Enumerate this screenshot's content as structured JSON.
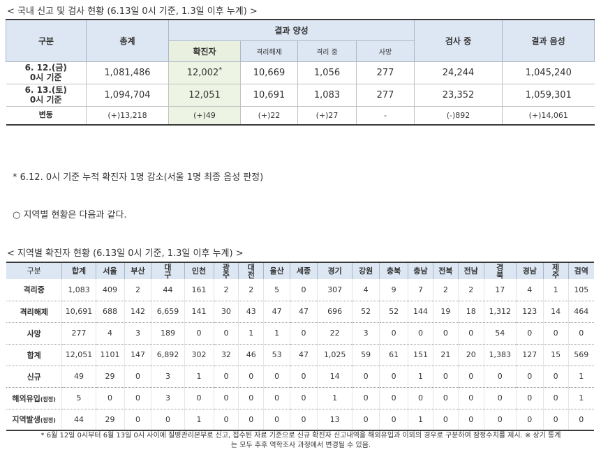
{
  "t1_title": "< 국내 신고 및 검사 현황 (6.13일 0시 기준, 1.3일 이후 누계) >",
  "t1": {
    "h_gubun": "구분",
    "h_total": "총계",
    "h_pos": "결과 양성",
    "h_conf": "확진자",
    "h_rel": "격리해제",
    "h_iso": "격리 중",
    "h_dead": "사망",
    "h_test": "검사 중",
    "h_neg": "결과 음성",
    "rows": [
      {
        "label1": "6. 12.(금)",
        "label2": "0시 기준",
        "total": "1,081,486",
        "conf": "12,002",
        "mark": "*",
        "rel": "10,669",
        "iso": "1,056",
        "dead": "277",
        "test": "24,244",
        "neg": "1,045,240"
      },
      {
        "label1": "6. 13.(토)",
        "label2": "0시 기준",
        "total": "1,094,704",
        "conf": "12,051",
        "mark": "",
        "rel": "10,691",
        "iso": "1,083",
        "dead": "277",
        "test": "23,352",
        "neg": "1,059,301"
      },
      {
        "label1": "변동",
        "label2": "",
        "total": "(+)13,218",
        "conf": "(+)49",
        "mark": "",
        "rel": "(+)22",
        "iso": "(+)27",
        "dead": "-",
        "test": "(-)892",
        "neg": "(+)14,061"
      }
    ]
  },
  "note1": "* 6.12. 0시 기준 누적 확진자 1명 감소(서울 1명 최종 음성 판정)",
  "note2": "○ 지역별 현황은 다음과 같다.",
  "t2_title": "< 지역별 확진자 현황 (6.13일 0시 기준, 1.3일 이후 누계) >",
  "t2": {
    "headers": [
      "구분",
      "합계",
      "서울",
      "부산",
      "대구",
      "인천",
      "광주",
      "대전",
      "울산",
      "세종",
      "경기",
      "강원",
      "충북",
      "충남",
      "전북",
      "전남",
      "경북",
      "경남",
      "제주",
      "검역"
    ],
    "rows": [
      {
        "label": "격리중",
        "sub": "",
        "values": [
          "1,083",
          "409",
          "2",
          "44",
          "161",
          "2",
          "2",
          "5",
          "0",
          "307",
          "4",
          "9",
          "7",
          "2",
          "2",
          "17",
          "4",
          "1",
          "105"
        ]
      },
      {
        "label": "격리해제",
        "sub": "",
        "values": [
          "10,691",
          "688",
          "142",
          "6,659",
          "141",
          "30",
          "43",
          "47",
          "47",
          "696",
          "52",
          "52",
          "144",
          "19",
          "18",
          "1,312",
          "123",
          "14",
          "464"
        ]
      },
      {
        "label": "사망",
        "sub": "",
        "values": [
          "277",
          "4",
          "3",
          "189",
          "0",
          "0",
          "1",
          "1",
          "0",
          "22",
          "3",
          "0",
          "0",
          "0",
          "0",
          "54",
          "0",
          "0",
          "0"
        ]
      },
      {
        "label": "합계",
        "sub": "",
        "values": [
          "12,051",
          "1101",
          "147",
          "6,892",
          "302",
          "32",
          "46",
          "53",
          "47",
          "1,025",
          "59",
          "61",
          "151",
          "21",
          "20",
          "1,383",
          "127",
          "15",
          "569"
        ]
      },
      {
        "label": "신규",
        "sub": "",
        "values": [
          "49",
          "29",
          "0",
          "3",
          "1",
          "0",
          "0",
          "0",
          "0",
          "14",
          "0",
          "0",
          "1",
          "0",
          "0",
          "0",
          "0",
          "0",
          "1"
        ]
      },
      {
        "label": "해외유입",
        "sub": "(잠정)",
        "values": [
          "5",
          "0",
          "0",
          "3",
          "0",
          "0",
          "0",
          "0",
          "0",
          "1",
          "0",
          "0",
          "0",
          "0",
          "0",
          "0",
          "0",
          "0",
          "1"
        ]
      },
      {
        "label": "지역발생",
        "sub": "(잠정)",
        "values": [
          "44",
          "29",
          "0",
          "0",
          "1",
          "0",
          "0",
          "0",
          "0",
          "13",
          "0",
          "0",
          "1",
          "0",
          "0",
          "0",
          "0",
          "0",
          "0"
        ]
      }
    ]
  },
  "foot1": "* 6월 12일 0시부터 6월 13일 0시 사이에 질병관리본부로 신고, 접수된 자료 기준으로 신규 확진자 신고내역을 해외유입과 이외의 경우로 구분하여 잠정수치를 제시. ※ 상기 통계",
  "foot2": "는 모두 추후 역학조사 과정에서 변경될 수 있음."
}
